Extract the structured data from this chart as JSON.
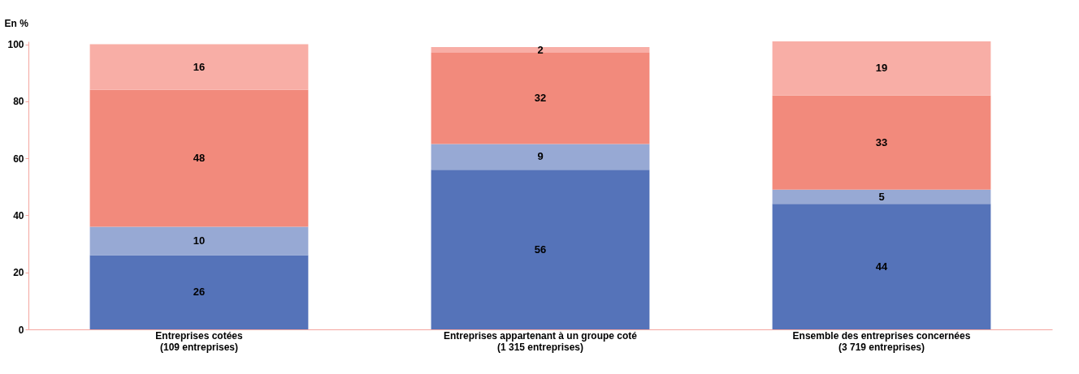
{
  "chart_data": {
    "type": "bar",
    "stacked": true,
    "ylabel": "En %",
    "categories": [
      "Entreprises cotées\n(109 entreprises)",
      "Entreprises appartenant à un groupe coté\n(1 315 entreprises)",
      "Ensemble des entreprises concernées\n(3 719 entreprises)"
    ],
    "series": [
      {
        "color": "#5573b9",
        "values": [
          26,
          56,
          44
        ]
      },
      {
        "color": "#97a9d4",
        "values": [
          10,
          9,
          5
        ]
      },
      {
        "color": "#f28a7c",
        "values": [
          48,
          32,
          33
        ]
      },
      {
        "color": "#f8aea6",
        "values": [
          16,
          2,
          19
        ]
      }
    ],
    "ylim": [
      0,
      101
    ],
    "yticks": [
      0,
      20,
      40,
      60,
      80,
      100
    ],
    "grid": false,
    "legend": false,
    "data_labels": true
  }
}
